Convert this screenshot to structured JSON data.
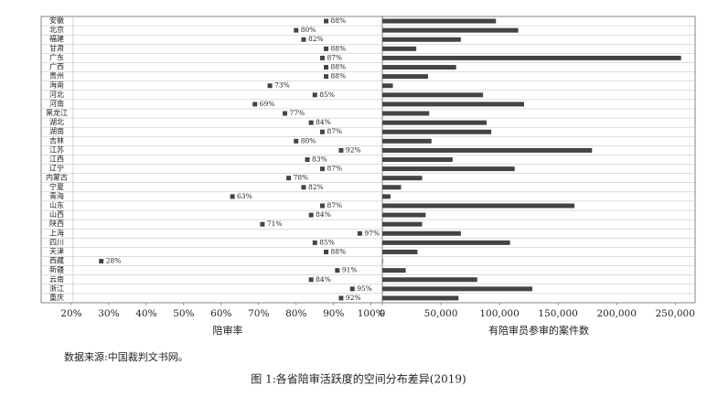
{
  "chart_data": [
    {
      "type": "dot",
      "xlabel": "陪审率",
      "categories": [
        "安徽",
        "北京",
        "福建",
        "甘肃",
        "广东",
        "广西",
        "贵州",
        "海南",
        "河北",
        "河南",
        "黑龙江",
        "湖北",
        "湖南",
        "吉林",
        "江苏",
        "江西",
        "辽宁",
        "内蒙古",
        "宁夏",
        "青海",
        "山东",
        "山西",
        "陕西",
        "上海",
        "四川",
        "天津",
        "西藏",
        "新疆",
        "云南",
        "浙江",
        "重庆"
      ],
      "values": [
        88,
        80,
        82,
        88,
        87,
        88,
        88,
        73,
        85,
        69,
        77,
        84,
        87,
        80,
        92,
        83,
        87,
        78,
        82,
        63,
        87,
        84,
        71,
        97,
        85,
        88,
        28,
        91,
        84,
        95,
        92
      ],
      "value_labels": [
        "88%",
        "80%",
        "82%",
        "88%",
        "87%",
        "88%",
        "88%",
        "73%",
        "85%",
        "69%",
        "77%",
        "84%",
        "87%",
        "80%",
        "92%",
        "83%",
        "87%",
        "78%",
        "82%",
        "63%",
        "87%",
        "84%",
        "71%",
        "97%",
        "85%",
        "88%",
        "28%",
        "91%",
        "84%",
        "95%",
        "92%"
      ],
      "color": "#444444",
      "xlim": [
        20.5,
        103
      ],
      "xticks": [
        {
          "value": 20,
          "label": "20%"
        },
        {
          "value": 30,
          "label": "30%"
        },
        {
          "value": 40,
          "label": "40%"
        },
        {
          "value": 50,
          "label": "50%"
        },
        {
          "value": 60,
          "label": "60%"
        },
        {
          "value": 70,
          "label": "70%"
        },
        {
          "value": 80,
          "label": "80%"
        },
        {
          "value": 90,
          "label": "90%"
        },
        {
          "value": 100,
          "label": "100%"
        }
      ]
    },
    {
      "type": "bar",
      "xlabel": "有陪审员参审的案件数",
      "values": [
        97000,
        116000,
        67000,
        29000,
        255000,
        63000,
        39000,
        9000,
        86000,
        121000,
        40000,
        89000,
        93000,
        42000,
        179000,
        60000,
        113000,
        34000,
        16000,
        7000,
        164000,
        37000,
        34000,
        67000,
        109000,
        30000,
        500,
        20000,
        81000,
        128000,
        65000
      ],
      "color": "#444444",
      "xlim": [
        0,
        267000
      ],
      "xticks": [
        0,
        {
          "value": 50000,
          "label": "50,000"
        },
        {
          "value": 100000,
          "label": "100,000"
        },
        {
          "value": 150000,
          "label": "150,000"
        },
        {
          "value": 200000,
          "label": "200,000"
        },
        {
          "value": 250000,
          "label": "250,000"
        }
      ]
    }
  ],
  "source": "数据来源:中国裁判文书网。",
  "caption": "图 1:各省陪审活跃度的空间分布差异(2019)"
}
